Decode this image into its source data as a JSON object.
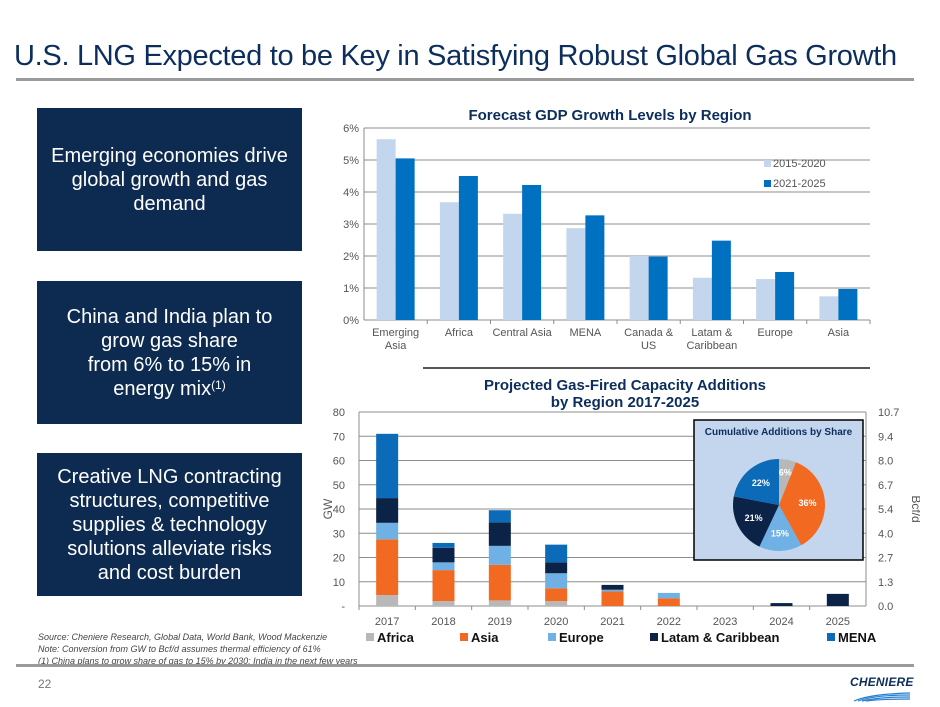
{
  "header": {
    "title": "U.S. LNG Expected to be Key in Satisfying Robust Global Gas Growth"
  },
  "callouts": [
    {
      "text": "Emerging economies drive global growth and gas demand"
    },
    {
      "text_lines": [
        "China and India plan to",
        "grow gas share",
        "from 6% to 15% in",
        "energy mix"
      ],
      "superscript": "(1)"
    },
    {
      "text": "Creative LNG contracting structures, competitive supplies & technology solutions alleviate risks and cost burden"
    }
  ],
  "colors": {
    "navy": "#0d2b51",
    "light_blue_bar": "#c3d6ee",
    "blue_bar": "#0070c0",
    "africa": "#b8b8b8",
    "asia": "#f26a22",
    "europe": "#6fb1e4",
    "latam": "#0b2346",
    "mena": "#0b6bb8",
    "inset_bg": "#c3d6ee"
  },
  "chart_data": [
    {
      "type": "bar",
      "title": "Forecast GDP Growth Levels by Region",
      "categories": [
        "Emerging Asia",
        "Africa",
        "Central Asia",
        "MENA",
        "Canada & US",
        "Latam & Caribbean",
        "Europe",
        "Asia"
      ],
      "category_lines": [
        [
          "Emerging",
          "Asia"
        ],
        [
          "Africa"
        ],
        [
          "Central Asia"
        ],
        [
          "MENA"
        ],
        [
          "Canada &",
          "US"
        ],
        [
          "Latam &",
          "Caribbean"
        ],
        [
          "Europe"
        ],
        [
          "Asia"
        ]
      ],
      "series": [
        {
          "name": "2015-2020",
          "values": [
            5.65,
            3.68,
            3.32,
            2.87,
            2.0,
            1.32,
            1.28,
            0.74
          ]
        },
        {
          "name": "2021-2025",
          "values": [
            5.05,
            4.5,
            4.22,
            3.27,
            1.98,
            2.48,
            1.5,
            0.97
          ]
        }
      ],
      "xlabel": "",
      "ylabel": "",
      "ylim": [
        0,
        6
      ],
      "yticks": [
        "0%",
        "1%",
        "2%",
        "3%",
        "4%",
        "5%",
        "6%"
      ],
      "grid": true,
      "legend_position": "top-right"
    },
    {
      "type": "bar",
      "stacked": true,
      "title": "Projected Gas-Fired Capacity Additions by Region 2017-2025",
      "title_lines": [
        "Projected Gas-Fired Capacity Additions",
        "by Region 2017-2025"
      ],
      "categories": [
        "2017",
        "2018",
        "2019",
        "2020",
        "2021",
        "2022",
        "2023",
        "2024",
        "2025"
      ],
      "series": [
        {
          "name": "Africa",
          "values": [
            4.5,
            2.0,
            2.3,
            2.0,
            0,
            0,
            0,
            0,
            0
          ]
        },
        {
          "name": "Asia",
          "values": [
            23.0,
            12.8,
            14.7,
            5.3,
            6.0,
            3.2,
            0,
            0,
            0
          ]
        },
        {
          "name": "Europe",
          "values": [
            6.8,
            3.2,
            7.8,
            6.2,
            0.7,
            2.2,
            0,
            0,
            0
          ]
        },
        {
          "name": "Latam & Caribbean",
          "values": [
            10.2,
            6.0,
            9.7,
            4.5,
            2.0,
            0,
            0,
            1.2,
            5.0
          ]
        },
        {
          "name": "MENA",
          "values": [
            26.5,
            2.0,
            5.0,
            7.3,
            0,
            0,
            0,
            0,
            0
          ]
        }
      ],
      "ylabel": "GW",
      "y2label": "Bcf/d",
      "ylim": [
        0,
        80
      ],
      "yticks": [
        "-",
        "10",
        "20",
        "30",
        "40",
        "50",
        "60",
        "70",
        "80"
      ],
      "y2ticks": [
        "0.0",
        "1.3",
        "2.7",
        "4.0",
        "5.4",
        "6.7",
        "8.0",
        "9.4",
        "10.7"
      ],
      "grid": true,
      "legend_position": "bottom"
    },
    {
      "type": "pie",
      "title": "Cumulative Additions by Share",
      "slices": [
        {
          "name": "Africa",
          "value": 6,
          "label": "6%"
        },
        {
          "name": "Asia",
          "value": 36,
          "label": "36%"
        },
        {
          "name": "Europe",
          "value": 15,
          "label": "15%"
        },
        {
          "name": "Latam & Caribbean",
          "value": 21,
          "label": "21%"
        },
        {
          "name": "MENA",
          "value": 22,
          "label": "22%"
        }
      ]
    }
  ],
  "notes": {
    "source": "Source: Cheniere Research, Global Data, World Bank, Wood Mackenzie",
    "note": "Note: Conversion from GW to Bcf/d assumes thermal efficiency of 61%",
    "footnote": "(1) China plans to grow share of gas to 15% by 2030; India in the next few years"
  },
  "footer": {
    "page_number": "22",
    "logo_text": "CHENIERE"
  }
}
